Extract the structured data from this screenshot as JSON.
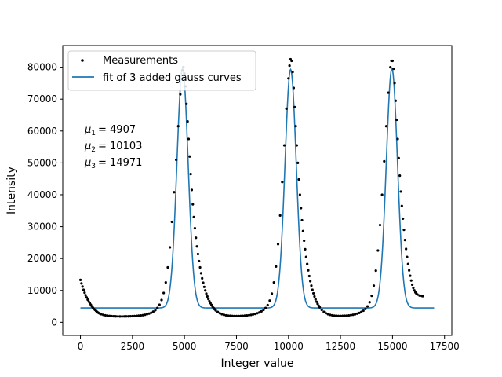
{
  "chart_data": {
    "type": "scatter",
    "title": "",
    "xlabel": "Integer value",
    "ylabel": "Intensity",
    "xlim": [
      -850,
      17850
    ],
    "ylim": [
      -4100,
      86800
    ],
    "xticks": [
      0,
      2500,
      5000,
      7500,
      10000,
      12500,
      15000,
      17500
    ],
    "xtick_labels": [
      "0",
      "2500",
      "5000",
      "7500",
      "10000",
      "12500",
      "15000",
      "17500"
    ],
    "yticks": [
      0,
      10000,
      20000,
      30000,
      40000,
      50000,
      60000,
      70000,
      80000
    ],
    "ytick_labels": [
      "0",
      "10000",
      "20000",
      "30000",
      "40000",
      "50000",
      "60000",
      "70000",
      "80000"
    ],
    "grid": false,
    "legend": {
      "position": "top-left",
      "entries": [
        "Measurements",
        "fit of 3 added gauss curves"
      ]
    },
    "annotations": [
      {
        "symbol": "μ",
        "sub": "1",
        "value": "= 4907"
      },
      {
        "symbol": "μ",
        "sub": "2",
        "value": "= 10103"
      },
      {
        "symbol": "μ",
        "sub": "3",
        "value": "= 14971"
      }
    ],
    "series": [
      {
        "name": "Measurements",
        "kind": "scatter",
        "color": "#000000",
        "points": [
          [
            0,
            13300
          ],
          [
            50,
            12200
          ],
          [
            100,
            11200
          ],
          [
            150,
            10200
          ],
          [
            200,
            9300
          ],
          [
            250,
            8500
          ],
          [
            300,
            7800
          ],
          [
            350,
            7100
          ],
          [
            400,
            6500
          ],
          [
            450,
            6000
          ],
          [
            500,
            5500
          ],
          [
            550,
            5000
          ],
          [
            600,
            4600
          ],
          [
            650,
            4200
          ],
          [
            700,
            3900
          ],
          [
            750,
            3600
          ],
          [
            800,
            3300
          ],
          [
            850,
            3050
          ],
          [
            900,
            2850
          ],
          [
            950,
            2700
          ],
          [
            1000,
            2550
          ],
          [
            1100,
            2350
          ],
          [
            1200,
            2200
          ],
          [
            1300,
            2100
          ],
          [
            1400,
            2000
          ],
          [
            1500,
            1950
          ],
          [
            1600,
            1900
          ],
          [
            1700,
            1880
          ],
          [
            1800,
            1860
          ],
          [
            1900,
            1850
          ],
          [
            2000,
            1850
          ],
          [
            2100,
            1860
          ],
          [
            2200,
            1870
          ],
          [
            2300,
            1880
          ],
          [
            2400,
            1900
          ],
          [
            2500,
            1930
          ],
          [
            2600,
            1970
          ],
          [
            2700,
            2020
          ],
          [
            2800,
            2080
          ],
          [
            2900,
            2150
          ],
          [
            3000,
            2250
          ],
          [
            3100,
            2380
          ],
          [
            3200,
            2550
          ],
          [
            3300,
            2750
          ],
          [
            3400,
            3000
          ],
          [
            3500,
            3350
          ],
          [
            3600,
            3800
          ],
          [
            3700,
            4500
          ],
          [
            3800,
            5500
          ],
          [
            3900,
            7000
          ],
          [
            4000,
            9200
          ],
          [
            4100,
            12500
          ],
          [
            4200,
            17200
          ],
          [
            4300,
            23500
          ],
          [
            4400,
            31500
          ],
          [
            4500,
            40800
          ],
          [
            4600,
            51000
          ],
          [
            4700,
            61500
          ],
          [
            4800,
            71500
          ],
          [
            4900,
            79000
          ],
          [
            4950,
            80000
          ],
          [
            5000,
            78000
          ],
          [
            5050,
            74000
          ],
          [
            5100,
            68500
          ],
          [
            5150,
            63000
          ],
          [
            5200,
            57500
          ],
          [
            5250,
            52000
          ],
          [
            5300,
            46500
          ],
          [
            5350,
            41500
          ],
          [
            5400,
            37000
          ],
          [
            5450,
            33000
          ],
          [
            5500,
            29500
          ],
          [
            5550,
            26500
          ],
          [
            5600,
            23800
          ],
          [
            5650,
            21400
          ],
          [
            5700,
            19200
          ],
          [
            5750,
            17200
          ],
          [
            5800,
            15400
          ],
          [
            5850,
            13800
          ],
          [
            5900,
            12400
          ],
          [
            5950,
            11100
          ],
          [
            6000,
            10000
          ],
          [
            6050,
            9000
          ],
          [
            6100,
            8100
          ],
          [
            6150,
            7300
          ],
          [
            6200,
            6600
          ],
          [
            6250,
            6000
          ],
          [
            6300,
            5450
          ],
          [
            6350,
            4950
          ],
          [
            6400,
            4500
          ],
          [
            6450,
            4100
          ],
          [
            6500,
            3750
          ],
          [
            6600,
            3250
          ],
          [
            6700,
            2850
          ],
          [
            6800,
            2550
          ],
          [
            6900,
            2350
          ],
          [
            7000,
            2200
          ],
          [
            7100,
            2100
          ],
          [
            7200,
            2050
          ],
          [
            7300,
            2000
          ],
          [
            7400,
            1980
          ],
          [
            7500,
            1970
          ],
          [
            7600,
            1980
          ],
          [
            7700,
            2000
          ],
          [
            7800,
            2030
          ],
          [
            7900,
            2080
          ],
          [
            8000,
            2150
          ],
          [
            8100,
            2230
          ],
          [
            8200,
            2340
          ],
          [
            8300,
            2480
          ],
          [
            8400,
            2650
          ],
          [
            8500,
            2850
          ],
          [
            8600,
            3100
          ],
          [
            8700,
            3450
          ],
          [
            8800,
            3900
          ],
          [
            8900,
            4500
          ],
          [
            9000,
            5400
          ],
          [
            9100,
            6800
          ],
          [
            9200,
            9000
          ],
          [
            9300,
            12500
          ],
          [
            9400,
            17500
          ],
          [
            9500,
            24500
          ],
          [
            9600,
            33500
          ],
          [
            9700,
            44000
          ],
          [
            9800,
            55500
          ],
          [
            9900,
            67000
          ],
          [
            10000,
            76500
          ],
          [
            10050,
            80500
          ],
          [
            10100,
            82500
          ],
          [
            10150,
            82000
          ],
          [
            10200,
            78500
          ],
          [
            10250,
            73500
          ],
          [
            10300,
            67500
          ],
          [
            10350,
            61500
          ],
          [
            10400,
            55500
          ],
          [
            10450,
            50000
          ],
          [
            10500,
            44800
          ],
          [
            10550,
            40000
          ],
          [
            10600,
            35800
          ],
          [
            10650,
            32000
          ],
          [
            10700,
            28600
          ],
          [
            10750,
            25600
          ],
          [
            10800,
            22900
          ],
          [
            10850,
            20500
          ],
          [
            10900,
            18300
          ],
          [
            10950,
            16300
          ],
          [
            11000,
            14500
          ],
          [
            11050,
            12900
          ],
          [
            11100,
            11500
          ],
          [
            11150,
            10200
          ],
          [
            11200,
            9100
          ],
          [
            11250,
            8100
          ],
          [
            11300,
            7200
          ],
          [
            11350,
            6450
          ],
          [
            11400,
            5800
          ],
          [
            11450,
            5200
          ],
          [
            11500,
            4700
          ],
          [
            11600,
            3900
          ],
          [
            11700,
            3300
          ],
          [
            11800,
            2850
          ],
          [
            11900,
            2550
          ],
          [
            12000,
            2350
          ],
          [
            12100,
            2200
          ],
          [
            12200,
            2100
          ],
          [
            12300,
            2050
          ],
          [
            12400,
            2000
          ],
          [
            12500,
            2000
          ],
          [
            12600,
            2020
          ],
          [
            12700,
            2050
          ],
          [
            12800,
            2100
          ],
          [
            12900,
            2170
          ],
          [
            13000,
            2260
          ],
          [
            13100,
            2380
          ],
          [
            13200,
            2530
          ],
          [
            13300,
            2720
          ],
          [
            13400,
            2950
          ],
          [
            13500,
            3250
          ],
          [
            13600,
            3650
          ],
          [
            13700,
            4200
          ],
          [
            13800,
            5000
          ],
          [
            13900,
            6300
          ],
          [
            14000,
            8300
          ],
          [
            14100,
            11500
          ],
          [
            14200,
            16200
          ],
          [
            14300,
            22500
          ],
          [
            14400,
            30500
          ],
          [
            14500,
            40000
          ],
          [
            14600,
            50500
          ],
          [
            14700,
            61500
          ],
          [
            14800,
            72000
          ],
          [
            14900,
            80000
          ],
          [
            14950,
            82000
          ],
          [
            15000,
            82000
          ],
          [
            15050,
            79500
          ],
          [
            15100,
            75000
          ],
          [
            15150,
            69500
          ],
          [
            15200,
            63500
          ],
          [
            15250,
            57500
          ],
          [
            15300,
            51500
          ],
          [
            15350,
            46000
          ],
          [
            15400,
            41000
          ],
          [
            15450,
            36500
          ],
          [
            15500,
            32500
          ],
          [
            15550,
            29000
          ],
          [
            15600,
            25800
          ],
          [
            15650,
            23000
          ],
          [
            15700,
            20500
          ],
          [
            15750,
            18300
          ],
          [
            15800,
            16300
          ],
          [
            15850,
            14600
          ],
          [
            15900,
            13100
          ],
          [
            15950,
            11800
          ],
          [
            16000,
            10800
          ],
          [
            16050,
            10000
          ],
          [
            16100,
            9400
          ],
          [
            16150,
            9000
          ],
          [
            16200,
            8700
          ],
          [
            16300,
            8400
          ],
          [
            16400,
            8300
          ],
          [
            16450,
            8200
          ]
        ]
      },
      {
        "name": "fit of 3 added gauss curves",
        "kind": "line",
        "color": "#1f77b4",
        "baseline": 4500,
        "gaussians": [
          {
            "mu": 4907,
            "amp": 75000,
            "sigma": 270
          },
          {
            "mu": 10103,
            "amp": 74800,
            "sigma": 270
          },
          {
            "mu": 14971,
            "amp": 75100,
            "sigma": 270
          }
        ],
        "x_range": [
          0,
          17000
        ]
      }
    ]
  }
}
